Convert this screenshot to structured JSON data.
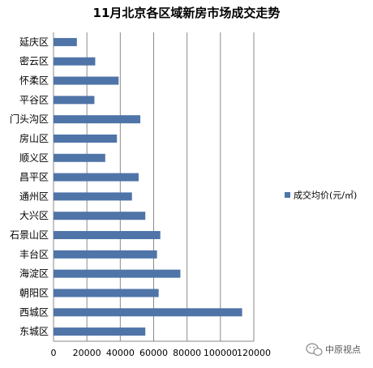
{
  "chart_data": {
    "type": "bar",
    "orientation": "horizontal",
    "title": "11月北京各区域新房市场成交走势",
    "categories": [
      "延庆区",
      "密云区",
      "怀柔区",
      "平谷区",
      "门头沟区",
      "房山区",
      "顺义区",
      "昌平区",
      "通州区",
      "大兴区",
      "石景山区",
      "丰台区",
      "海淀区",
      "朝阳区",
      "西城区",
      "东城区"
    ],
    "series": [
      {
        "name": "成交均价(元/㎡)",
        "color": "#4f74a8",
        "values": [
          14000,
          25000,
          39000,
          24500,
          52000,
          38000,
          31000,
          51000,
          47000,
          55000,
          64000,
          62000,
          76000,
          63000,
          113000,
          55000
        ]
      }
    ],
    "xlim": [
      0,
      120000
    ],
    "xticks": [
      0,
      20000,
      40000,
      60000,
      80000,
      100000,
      120000
    ],
    "xtick_labels": [
      "0",
      "20000",
      "40000",
      "60000",
      "80000",
      "100000",
      "120000"
    ],
    "grid": "vertical",
    "legend_position": "right"
  },
  "watermark": {
    "icon": "wechat-icon",
    "text": "中原视点"
  }
}
